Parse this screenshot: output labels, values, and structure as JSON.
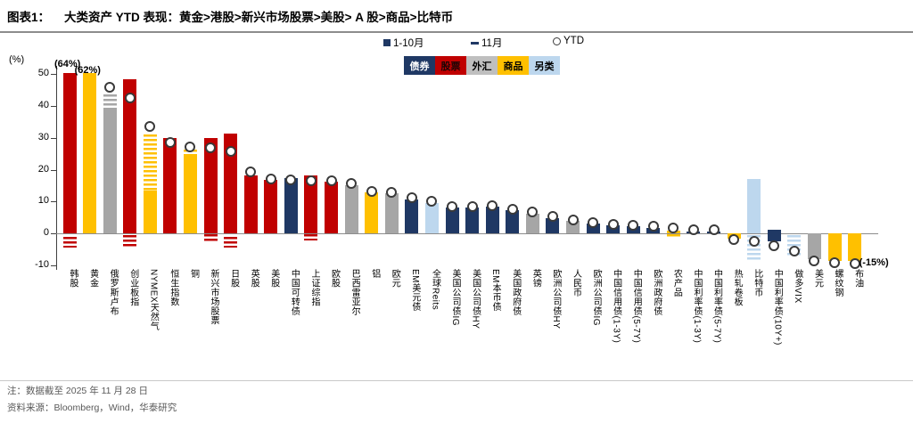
{
  "header": {
    "tag": "图表1：",
    "title": "大类资产 YTD 表现：黄金>港股>新兴市场股票>美股> A 股>商品>比特币"
  },
  "legend": {
    "series": [
      {
        "label": "1-10月",
        "marker": "square-icon"
      },
      {
        "label": "11月",
        "marker": "dash-icon"
      },
      {
        "label": "YTD",
        "marker": "circle-icon"
      }
    ],
    "categories": [
      {
        "label": "债券",
        "bg": "#1F3864",
        "fg": "#FFFFFF"
      },
      {
        "label": "股票",
        "bg": "#C00000",
        "fg": "#1a0505"
      },
      {
        "label": "外汇",
        "bg": "#BFBFBF",
        "fg": "#000000"
      },
      {
        "label": "商品",
        "bg": "#FFC000",
        "fg": "#000000"
      },
      {
        "label": "另类",
        "bg": "#BDD7EE",
        "fg": "#000000"
      }
    ]
  },
  "chart_data": {
    "type": "bar",
    "title": "大类资产 YTD 表现",
    "ylabel": "(%)",
    "yticks": [
      50,
      40,
      30,
      20,
      10,
      0,
      -10
    ],
    "ylim": [
      -11.5,
      52.5
    ],
    "legend_position": "top",
    "grid": false,
    "category_colors": {
      "债券": "#1F3864",
      "股票": "#C00000",
      "外汇": "#A6A6A6",
      "商品": "#FFC000",
      "另类": "#BDD7EE"
    },
    "series_meaning": {
      "bar": "1-10月 (solid)",
      "hatch": "11月 (striped)",
      "ytd": "YTD (circle)"
    },
    "bars": [
      {
        "label": "韩股",
        "cat": "股票",
        "bar": [
          0,
          50.3
        ],
        "hatch": [
          -4.5,
          -1
        ],
        "ytd": null,
        "note": "(64%)",
        "note_pos": "top"
      },
      {
        "label": "黄金",
        "cat": "商品",
        "bar": [
          0,
          50.3
        ],
        "hatch": null,
        "ytd": null,
        "note": "(62%)",
        "note_pos": "top"
      },
      {
        "label": "俄罗斯卢布",
        "cat": "外汇",
        "bar": [
          0,
          39.5
        ],
        "hatch": [
          39.5,
          43.5
        ],
        "ytd": 45.8,
        "note": null
      },
      {
        "label": "创业板指",
        "cat": "股票",
        "bar": [
          0,
          48.5
        ],
        "hatch": [
          -4.5,
          -0.5
        ],
        "ytd": 42.5,
        "note": null
      },
      {
        "label": "NYMEX天然气",
        "cat": "商品",
        "bar": [
          0,
          13.5
        ],
        "hatch": [
          13.5,
          31
        ],
        "ytd": 33.6,
        "note": null
      },
      {
        "label": "恒生指数",
        "cat": "股票",
        "bar": [
          0,
          30
        ],
        "hatch": null,
        "ytd": 28.5,
        "note": null
      },
      {
        "label": "铜",
        "cat": "商品",
        "bar": [
          0,
          25
        ],
        "hatch": [
          25,
          26.4
        ],
        "ytd": 27.1,
        "note": null
      },
      {
        "label": "新兴市场股票",
        "cat": "股票",
        "bar": [
          0,
          30
        ],
        "hatch": [
          -2.9,
          -0.3
        ],
        "ytd": 26.8,
        "note": null
      },
      {
        "label": "日股",
        "cat": "股票",
        "bar": [
          0,
          31.2
        ],
        "hatch": [
          -4.5,
          -1
        ],
        "ytd": 25.6,
        "note": null
      },
      {
        "label": "英股",
        "cat": "股票",
        "bar": [
          0,
          18.2
        ],
        "hatch": null,
        "ytd": 19.2,
        "note": null
      },
      {
        "label": "美股",
        "cat": "股票",
        "bar": [
          0,
          16.8
        ],
        "hatch": null,
        "ytd": 17.1,
        "note": null
      },
      {
        "label": "中国可转债",
        "cat": "债券",
        "bar": [
          0,
          17.3
        ],
        "hatch": null,
        "ytd": 16.9,
        "note": null
      },
      {
        "label": "上证综指",
        "cat": "股票",
        "bar": [
          0,
          18.2
        ],
        "hatch": [
          -2.3,
          -0.3
        ],
        "ytd": 16.5,
        "note": null
      },
      {
        "label": "欧股",
        "cat": "股票",
        "bar": [
          0,
          16.3
        ],
        "hatch": null,
        "ytd": 16.4,
        "note": null
      },
      {
        "label": "巴西雷亚尔",
        "cat": "外汇",
        "bar": [
          0,
          15
        ],
        "hatch": null,
        "ytd": 15.7,
        "note": null
      },
      {
        "label": "铝",
        "cat": "商品",
        "bar": [
          0,
          12.8
        ],
        "hatch": null,
        "ytd": 13.2,
        "note": null
      },
      {
        "label": "欧元",
        "cat": "外汇",
        "bar": [
          0,
          12.5
        ],
        "hatch": null,
        "ytd": 12.9,
        "note": null
      },
      {
        "label": "EM美元债",
        "cat": "债券",
        "bar": [
          0,
          10.7
        ],
        "hatch": null,
        "ytd": 11.2,
        "note": null
      },
      {
        "label": "全球Reits",
        "cat": "另类",
        "bar": [
          0,
          9.5
        ],
        "hatch": null,
        "ytd": 10.1,
        "note": null
      },
      {
        "label": "美国公司债IG",
        "cat": "债券",
        "bar": [
          0,
          8.2
        ],
        "hatch": null,
        "ytd": 8.5,
        "note": null
      },
      {
        "label": "美国公司债HY",
        "cat": "债券",
        "bar": [
          0,
          8.0
        ],
        "hatch": null,
        "ytd": 8.3,
        "note": null
      },
      {
        "label": "EM本币债",
        "cat": "债券",
        "bar": [
          0,
          8.4
        ],
        "hatch": null,
        "ytd": 8.7,
        "note": null
      },
      {
        "label": "美国政府债",
        "cat": "债券",
        "bar": [
          0,
          7.2
        ],
        "hatch": null,
        "ytd": 7.5,
        "note": null
      },
      {
        "label": "英镑",
        "cat": "外汇",
        "bar": [
          0,
          6.2
        ],
        "hatch": null,
        "ytd": 6.6,
        "note": null
      },
      {
        "label": "欧洲公司债HY",
        "cat": "债券",
        "bar": [
          0,
          4.8
        ],
        "hatch": null,
        "ytd": 5.2,
        "note": null
      },
      {
        "label": "人民币",
        "cat": "外汇",
        "bar": [
          0,
          3.8
        ],
        "hatch": null,
        "ytd": 4.2,
        "note": null
      },
      {
        "label": "欧洲公司债IG",
        "cat": "债券",
        "bar": [
          0,
          3.0
        ],
        "hatch": null,
        "ytd": 3.4,
        "note": null
      },
      {
        "label": "中国信用债(1-3Y)",
        "cat": "债券",
        "bar": [
          0,
          2.4
        ],
        "hatch": null,
        "ytd": 2.8,
        "note": null
      },
      {
        "label": "中国信用债(5-7Y)",
        "cat": "债券",
        "bar": [
          0,
          2.2
        ],
        "hatch": null,
        "ytd": 2.6,
        "note": null
      },
      {
        "label": "欧洲政府债",
        "cat": "债券",
        "bar": [
          0,
          1.8
        ],
        "hatch": null,
        "ytd": 2.2,
        "note": null
      },
      {
        "label": "农产品",
        "cat": "商品",
        "bar": [
          0,
          0.8
        ],
        "hatch": [
          -1.3,
          -0.3
        ],
        "ytd": 1.7,
        "note": null
      },
      {
        "label": "中国利率债(1-3Y)",
        "cat": "债券",
        "bar": [
          0,
          0.6
        ],
        "hatch": null,
        "ytd": 1.1,
        "note": null
      },
      {
        "label": "中国利率债(5-7Y)",
        "cat": "债券",
        "bar": [
          0,
          0.5
        ],
        "hatch": null,
        "ytd": 1.0,
        "note": null
      },
      {
        "label": "热轧卷板",
        "cat": "商品",
        "bar": [
          -1.6,
          0
        ],
        "hatch": null,
        "ytd": -2.0,
        "note": null
      },
      {
        "label": "比特币",
        "cat": "另类",
        "bar": [
          0,
          17
        ],
        "hatch": [
          -8.8,
          -0.5
        ],
        "ytd": -2.5,
        "note": null
      },
      {
        "label": "中国利率债(10Y+)",
        "cat": "债券",
        "bar": [
          -2.6,
          1.2
        ],
        "hatch": null,
        "ytd": -3.8,
        "note": null
      },
      {
        "label": "做多VIX",
        "cat": "另类",
        "bar": null,
        "hatch": [
          -7,
          -0.5
        ],
        "ytd": -5.6,
        "note": null
      },
      {
        "label": "美元",
        "cat": "外汇",
        "bar": [
          -8.2,
          0
        ],
        "hatch": null,
        "ytd": -8.6,
        "note": null
      },
      {
        "label": "螺纹钢",
        "cat": "商品",
        "bar": [
          -8.8,
          0
        ],
        "hatch": null,
        "ytd": -9.3,
        "note": null
      },
      {
        "label": "布油",
        "cat": "商品",
        "bar": [
          -8.8,
          0
        ],
        "hatch": null,
        "ytd": -9.5,
        "note": "(-15%)",
        "note_pos": "right"
      }
    ]
  },
  "footer": {
    "note": "注：数据截至 2025 年 11 月 28 日",
    "source": "资料来源：Bloomberg，Wind，华泰研究"
  }
}
